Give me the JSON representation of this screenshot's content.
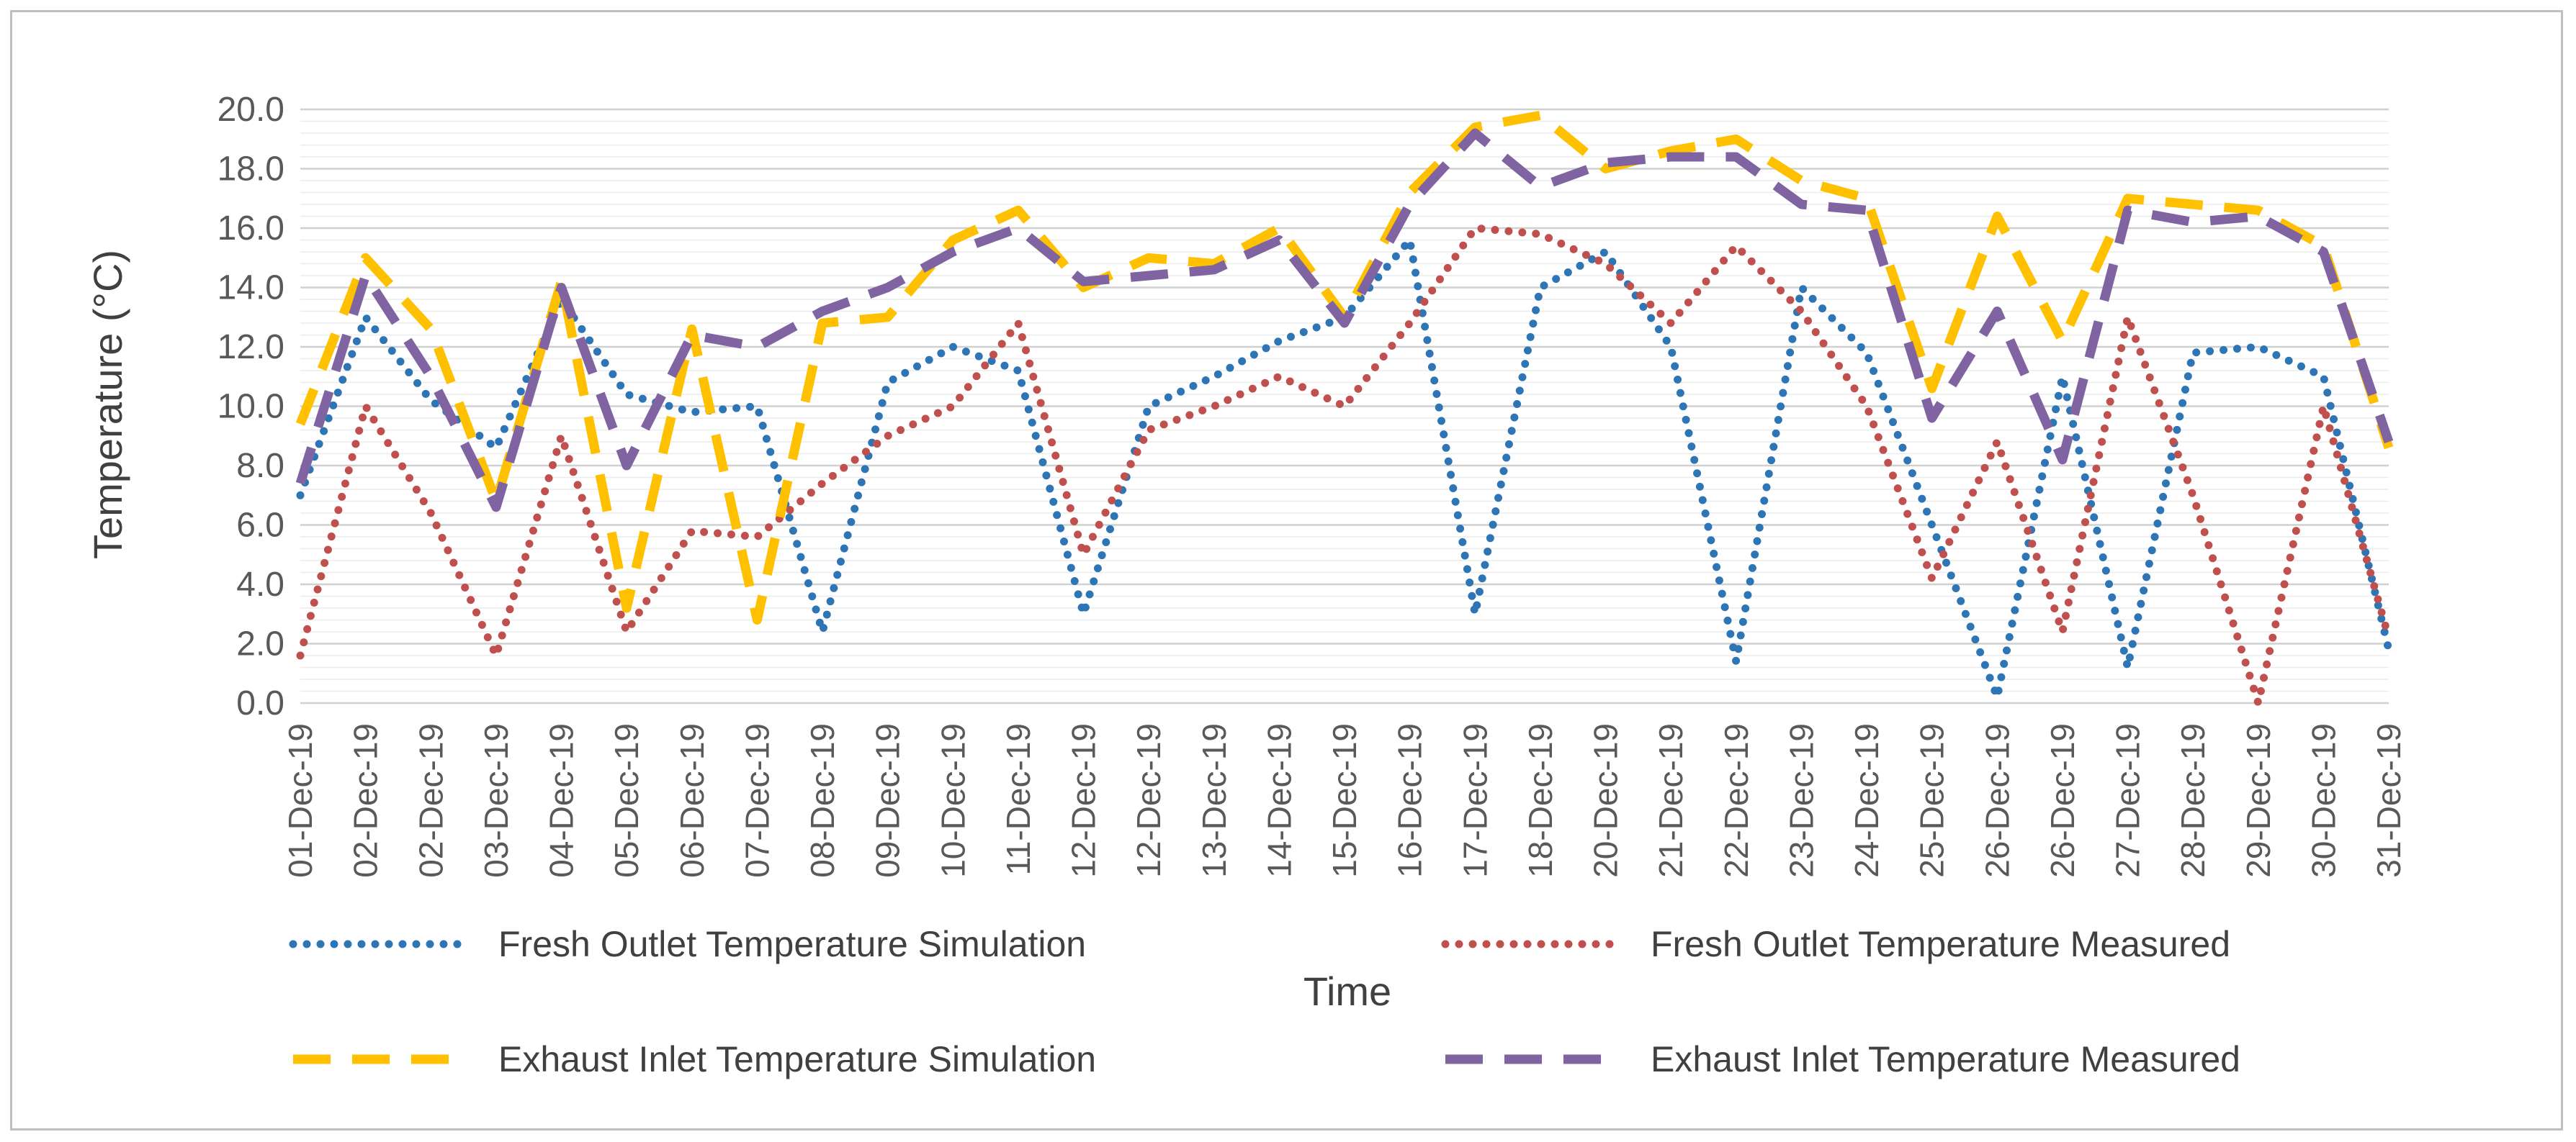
{
  "chart_data": {
    "type": "line",
    "title": "",
    "xlabel": "Time",
    "ylabel": "Temperature (°C)",
    "ylim": [
      0,
      20
    ],
    "yticks": [
      "0.0",
      "2.0",
      "4.0",
      "6.0",
      "8.0",
      "10.0",
      "12.0",
      "14.0",
      "16.0",
      "18.0",
      "20.0"
    ],
    "grid": "horizontal",
    "legend_position": "bottom",
    "categories": [
      "01-Dec-19",
      "02-Dec-19",
      "02-Dec-19",
      "03-Dec-19",
      "04-Dec-19",
      "05-Dec-19",
      "06-Dec-19",
      "07-Dec-19",
      "08-Dec-19",
      "09-Dec-19",
      "10-Dec-19",
      "11-Dec-19",
      "12-Dec-19",
      "12-Dec-19",
      "13-Dec-19",
      "14-Dec-19",
      "15-Dec-19",
      "16-Dec-19",
      "17-Dec-19",
      "18-Dec-19",
      "20-Dec-19",
      "21-Dec-19",
      "22-Dec-19",
      "23-Dec-19",
      "24-Dec-19",
      "25-Dec-19",
      "26-Dec-19",
      "26-Dec-19",
      "27-Dec-19",
      "28-Dec-19",
      "29-Dec-19",
      "30-Dec-19",
      "31-Dec-19"
    ],
    "series": [
      {
        "name": "Fresh Outlet Temperature Simulation",
        "color": "#2e75b6",
        "style": "dotted",
        "values": [
          7.0,
          13.0,
          10.2,
          8.6,
          13.6,
          10.4,
          9.8,
          10.0,
          2.4,
          10.8,
          12.0,
          11.2,
          3.0,
          10.0,
          11.0,
          12.2,
          13.0,
          15.6,
          3.0,
          14.0,
          15.2,
          12.0,
          1.4,
          14.0,
          11.8,
          6.0,
          0.2,
          11.0,
          1.2,
          11.8,
          12.0,
          11.0,
          1.8
        ]
      },
      {
        "name": "Fresh Outlet Temperature Measured",
        "color": "#c0504d",
        "style": "dotted",
        "values": [
          1.6,
          10.0,
          6.4,
          1.6,
          9.0,
          2.4,
          5.8,
          5.6,
          7.4,
          9.0,
          10.0,
          12.8,
          5.0,
          9.2,
          10.0,
          11.0,
          10.0,
          12.8,
          16.0,
          15.8,
          14.8,
          12.8,
          15.4,
          13.2,
          10.0,
          4.2,
          8.8,
          2.4,
          13.0,
          7.0,
          0.0,
          10.0,
          2.2
        ]
      },
      {
        "name": "Exhaust Inlet Temperature Simulation",
        "color": "#ffc000",
        "style": "dashed",
        "values": [
          9.4,
          15.0,
          12.6,
          6.8,
          14.2,
          3.2,
          12.6,
          2.8,
          12.8,
          13.0,
          15.6,
          16.6,
          14.0,
          15.0,
          14.8,
          16.0,
          13.0,
          17.2,
          19.4,
          19.8,
          18.0,
          18.6,
          19.0,
          17.6,
          17.0,
          10.6,
          16.4,
          12.2,
          17.0,
          16.8,
          16.6,
          15.4,
          8.6
        ]
      },
      {
        "name": "Exhaust Inlet Temperature Measured",
        "color": "#8064a2",
        "style": "dashed",
        "values": [
          7.4,
          14.4,
          11.0,
          6.6,
          14.0,
          8.0,
          12.4,
          12.0,
          13.2,
          14.0,
          15.2,
          16.0,
          14.2,
          14.4,
          14.6,
          15.6,
          12.8,
          16.8,
          19.2,
          17.4,
          18.2,
          18.4,
          18.4,
          16.8,
          16.6,
          9.6,
          13.2,
          8.2,
          16.6,
          16.2,
          16.4,
          15.2,
          8.8
        ]
      }
    ]
  }
}
